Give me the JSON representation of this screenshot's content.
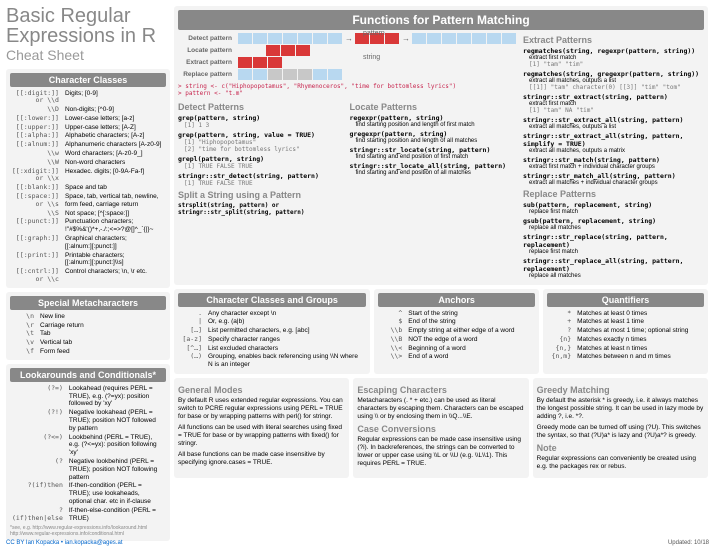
{
  "title": {
    "main": "Basic Regular\nExpressions in R",
    "sub": "Cheat Sheet"
  },
  "colors": {
    "hdr": "#888888",
    "red": "#d93838",
    "blue": "#b8d8f0",
    "grey": "#c8c8c8"
  },
  "charClasses": {
    "hdr": "Character Classes",
    "rows": [
      [
        "[[:digit:]] or \\\\d",
        "Digits; [0-9]"
      ],
      [
        "\\\\D",
        "Non-digits; [^0-9]"
      ],
      [
        "[[:lower:]]",
        "Lower-case letters; [a-z]"
      ],
      [
        "[[:upper:]]",
        "Upper-case letters; [A-Z]"
      ],
      [
        "[[:alpha:]]",
        "Alphabetic characters; [A-z]"
      ],
      [
        "[[:alnum:]]",
        "Alphanumeric characters [A-z0-9]"
      ],
      [
        "\\\\w",
        "Word characters; [A-z0-9_]"
      ],
      [
        "\\\\W",
        "Non-word characters"
      ],
      [
        "[[:xdigit:]] or \\\\x",
        "Hexadec. digits; [0-9A-Fa-f]"
      ],
      [
        "[[:blank:]]",
        "Space and tab"
      ],
      [
        "[[:space:]] or \\\\s",
        "Space, tab, vertical tab, newline, form feed, carriage return"
      ],
      [
        "\\\\S",
        "Not space; [^[:space:]]"
      ],
      [
        "[[:punct:]]",
        "Punctuation characters;\n!\"#$%&'()*+,-./:;<=>?@[]^_`{|}~"
      ],
      [
        "[[:graph:]]",
        "Graphical characters;\n[[:alnum:][:punct:]]"
      ],
      [
        "[[:print:]]",
        "Printable characters;\n[[:alnum:][:punct:]\\\\s]"
      ],
      [
        "[[:cntrl:]] or \\\\c",
        "Control characters; \\n, \\r etc."
      ]
    ]
  },
  "meta": {
    "hdr": "Special Metacharacters",
    "rows": [
      [
        "\\n",
        "New line"
      ],
      [
        "\\r",
        "Carriage return"
      ],
      [
        "\\t",
        "Tab"
      ],
      [
        "\\v",
        "Vertical tab"
      ],
      [
        "\\f",
        "Form feed"
      ]
    ]
  },
  "look": {
    "hdr": "Lookarounds and Conditionals*",
    "rows": [
      [
        "(?=)",
        "Lookahead (requires PERL = TRUE), e.g. (?=yx): position followed by 'xy'"
      ],
      [
        "(?!)",
        "Negative lookahead (PERL = TRUE); position NOT followed by pattern"
      ],
      [
        "(?<=)",
        "Lookbehind (PERL = TRUE), e.g. (?<=yx): position following 'xy'"
      ],
      [
        "(?<!)",
        "Negative lookbehind (PERL = TRUE); position NOT following pattern"
      ],
      [
        "?(if)then",
        "If-then-condition (PERL = TRUE); use lookaheads, optional char. etc in if-clause"
      ],
      [
        "?(if)then|else",
        "If-then-else-condition (PERL = TRUE)"
      ]
    ],
    "note": "*see, e.g. http://www.regular-expressions.info/lookaround.html http://www.regular-expressions.info/conditional.html"
  },
  "fpm": {
    "hdr": "Functions for Pattern Matching",
    "diagLabels": [
      "Detect pattern",
      "Locate pattern",
      "Extract pattern",
      "Replace pattern"
    ],
    "pattern": "pattern",
    "string": "string",
    "example": "> string <- c(\"Hiphopopotamus\", \"Rhymenoceros\", \"time for bottomless lyrics\")\n> pattern <- \"t.m\""
  },
  "detect": {
    "hdr": "Detect Patterns",
    "items": [
      {
        "fn": "grep(pattern, string)",
        "out": "[1] 1 3"
      },
      {
        "fn": "grep(pattern, string, value = TRUE)",
        "out": "[1] \"Hiphopopotamus\"\n[2] \"time for bottomless lyrics\""
      },
      {
        "fn": "grepl(pattern, string)",
        "out": "[1]  TRUE FALSE  TRUE"
      },
      {
        "fn": "stringr::str_detect(string, pattern)",
        "out": "[1]  TRUE FALSE  TRUE"
      }
    ]
  },
  "split": {
    "hdr": "Split a String using a Pattern",
    "txt": "strsplit(string, pattern) or stringr::str_split(string, pattern)"
  },
  "locate": {
    "hdr": "Locate Patterns",
    "items": [
      {
        "fn": "regexpr(pattern, string)",
        "d": "find starting position and length of first match"
      },
      {
        "fn": "gregexpr(pattern, string)",
        "d": "find starting position and length of all matches"
      },
      {
        "fn": "stringr::str_locate(string, pattern)",
        "d": "find starting and end position of first match"
      },
      {
        "fn": "stringr::str_locate_all(string, pattern)",
        "d": "find starting and end position of all matches"
      }
    ]
  },
  "extract": {
    "hdr": "Extract Patterns",
    "items": [
      {
        "fn": "regmatches(string, regexpr(pattern, string))",
        "d": "extract first match",
        "out": "[1] \"tam\" \"tim\""
      },
      {
        "fn": "regmatches(string, gregexpr(pattern, string))",
        "d": "extract all matches, outputs a list",
        "out": "[[1]] \"tam\" character(0) [[3]] \"tim\" \"tom\""
      },
      {
        "fn": "stringr::str_extract(string, pattern)",
        "d": "extract first match",
        "out": "[1] \"tam\" NA \"tim\""
      },
      {
        "fn": "stringr::str_extract_all(string, pattern)",
        "d": "extract all matches, outputs a list"
      },
      {
        "fn": "stringr::str_extract_all(string, pattern, simplify = TRUE)",
        "d": "extract all matches, outputs a matrix"
      },
      {
        "fn": "stringr::str_match(string, pattern)",
        "d": "extract first match + individual character groups"
      },
      {
        "fn": "stringr::str_match_all(string, pattern)",
        "d": "extract all matches + individual character groups"
      }
    ]
  },
  "replace": {
    "hdr": "Replace Patterns",
    "items": [
      {
        "fn": "sub(pattern, replacement, string)",
        "d": "replace first match"
      },
      {
        "fn": "gsub(pattern, replacement, string)",
        "d": "replace all matches"
      },
      {
        "fn": "stringr::str_replace(string, pattern, replacement)",
        "d": "replace first match"
      },
      {
        "fn": "stringr::str_replace_all(string, pattern, replacement)",
        "d": "replace all matches"
      }
    ]
  },
  "ccg": {
    "hdr": "Character Classes and Groups",
    "rows": [
      [
        ".",
        "Any character except \\n"
      ],
      [
        "|",
        "Or, e.g. (a|b)"
      ],
      [
        "[…]",
        "List permitted characters, e.g. [abc]"
      ],
      [
        "[a-z]",
        "Specify character ranges"
      ],
      [
        "[^…]",
        "List excluded characters"
      ],
      [
        "(…)",
        "Grouping, enables back referencing using \\\\N where N is an integer"
      ]
    ]
  },
  "anchors": {
    "hdr": "Anchors",
    "rows": [
      [
        "^",
        "Start of the string"
      ],
      [
        "$",
        "End of the string"
      ],
      [
        "\\\\b",
        "Empty string at either edge of a word"
      ],
      [
        "\\\\B",
        "NOT the edge of a word"
      ],
      [
        "\\\\<",
        "Beginning of a word"
      ],
      [
        "\\\\>",
        "End of a word"
      ]
    ]
  },
  "quant": {
    "hdr": "Quantifiers",
    "rows": [
      [
        "*",
        "Matches at least 0 times"
      ],
      [
        "+",
        "Matches at least 1 time"
      ],
      [
        "?",
        "Matches at most 1 time; optional string"
      ],
      [
        "{n}",
        "Matches exactly n times"
      ],
      [
        "{n,}",
        "Matches at least n times"
      ],
      [
        "{n,m}",
        "Matches between n and m times"
      ]
    ]
  },
  "modes": {
    "hdr": "General Modes",
    "p": [
      "By default R uses extended regular expressions. You can switch to PCRE regular expressions using PERL = TRUE for base or by wrapping patterns with perl() for stringr.",
      "All functions can be used with literal searches using fixed = TRUE for base or by wrapping patterns with fixed() for stringr.",
      "All base functions can be made case insensitive by specifying ignore.cases = TRUE."
    ]
  },
  "escape": {
    "hdr": "Escaping Characters",
    "p": [
      "Metacharacters (. * + etc.) can be used as literal characters by escaping them. Characters can be escaped using \\\\ or by enclosing them in \\\\Q...\\\\E."
    ]
  },
  "caseconv": {
    "hdr": "Case Conversions",
    "p": [
      "Regular expressions can be made case insensitive using (?i). In backreferences, the strings can be converted to lower or upper case using \\\\L or \\\\U (e.g. \\\\L\\\\1). This requires PERL = TRUE."
    ]
  },
  "greedy": {
    "hdr": "Greedy Matching",
    "p": [
      "By default the asterisk * is greedy, i.e. it always matches the longest possible string. It can be used in lazy mode by adding ?, i.e. *?.",
      "Greedy mode can be turned off using (?U). This switches the syntax, so that (?U)a* is lazy and (?U)a*? is greedy."
    ]
  },
  "note": {
    "hdr": "Note",
    "p": [
      "Regular expressions can conveniently be created using e.g. the packages rex or rebus."
    ]
  },
  "footer": {
    "left": "CC BY Ian Kopacka • ian.kopacka@ages.at",
    "right": "Updated: 10/18"
  }
}
